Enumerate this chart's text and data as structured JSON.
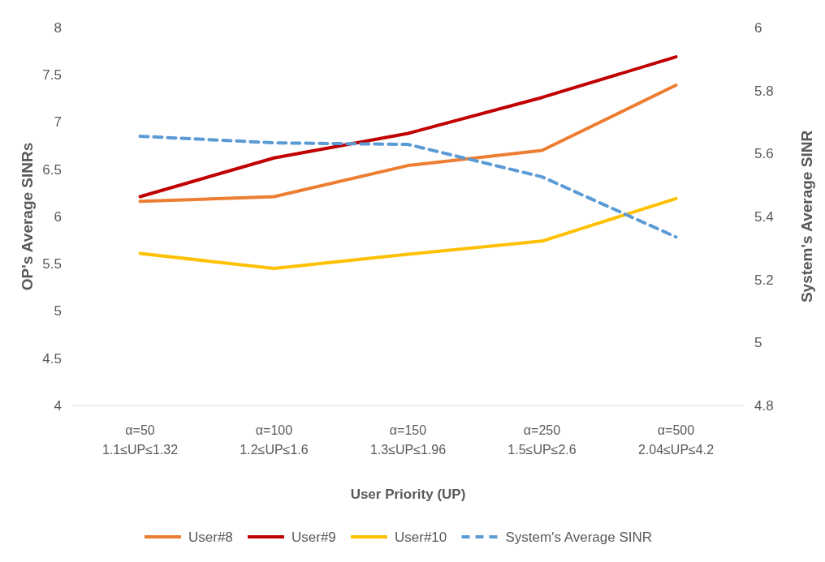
{
  "chart_data": {
    "type": "line",
    "xlabel": "User Priority (UP)",
    "ylabel": "OP's Average SINRs",
    "y2label": "System's Average SINR",
    "categories": [
      "α=50\n1.1≤UP≤1.32",
      "α=100\n1.2≤UP≤1.6",
      "α=150\n1.3≤UP≤1.96",
      "α=250\n1.5≤UP≤2.6",
      "α=500\n2.04≤UP≤4.2"
    ],
    "ylim": [
      4,
      8
    ],
    "yticks": [
      4,
      4.5,
      5,
      5.5,
      6,
      6.5,
      7,
      7.5,
      8
    ],
    "y2lim": [
      4.8,
      6
    ],
    "y2ticks": [
      4.8,
      5,
      5.2,
      5.4,
      5.6,
      5.8,
      6
    ],
    "grid": false,
    "legend": "bottom",
    "marker": "none",
    "series": [
      {
        "name": "User#8",
        "color": "#ed7d31",
        "values": [
          6.16,
          6.21,
          6.54,
          6.7,
          7.39
        ]
      },
      {
        "name": "User#9",
        "color": "#c00000",
        "values": [
          6.21,
          6.62,
          6.88,
          7.26,
          7.69
        ]
      },
      {
        "name": "User#10",
        "color": "#ffc000",
        "values": [
          5.61,
          5.45,
          5.6,
          5.74,
          6.19
        ]
      },
      {
        "name": "System's Average SINR",
        "color": "#5b9bd5",
        "axis": "y2",
        "line_style": "dashed",
        "values": [
          5.655,
          5.634,
          5.629,
          5.526,
          5.335
        ]
      }
    ]
  }
}
